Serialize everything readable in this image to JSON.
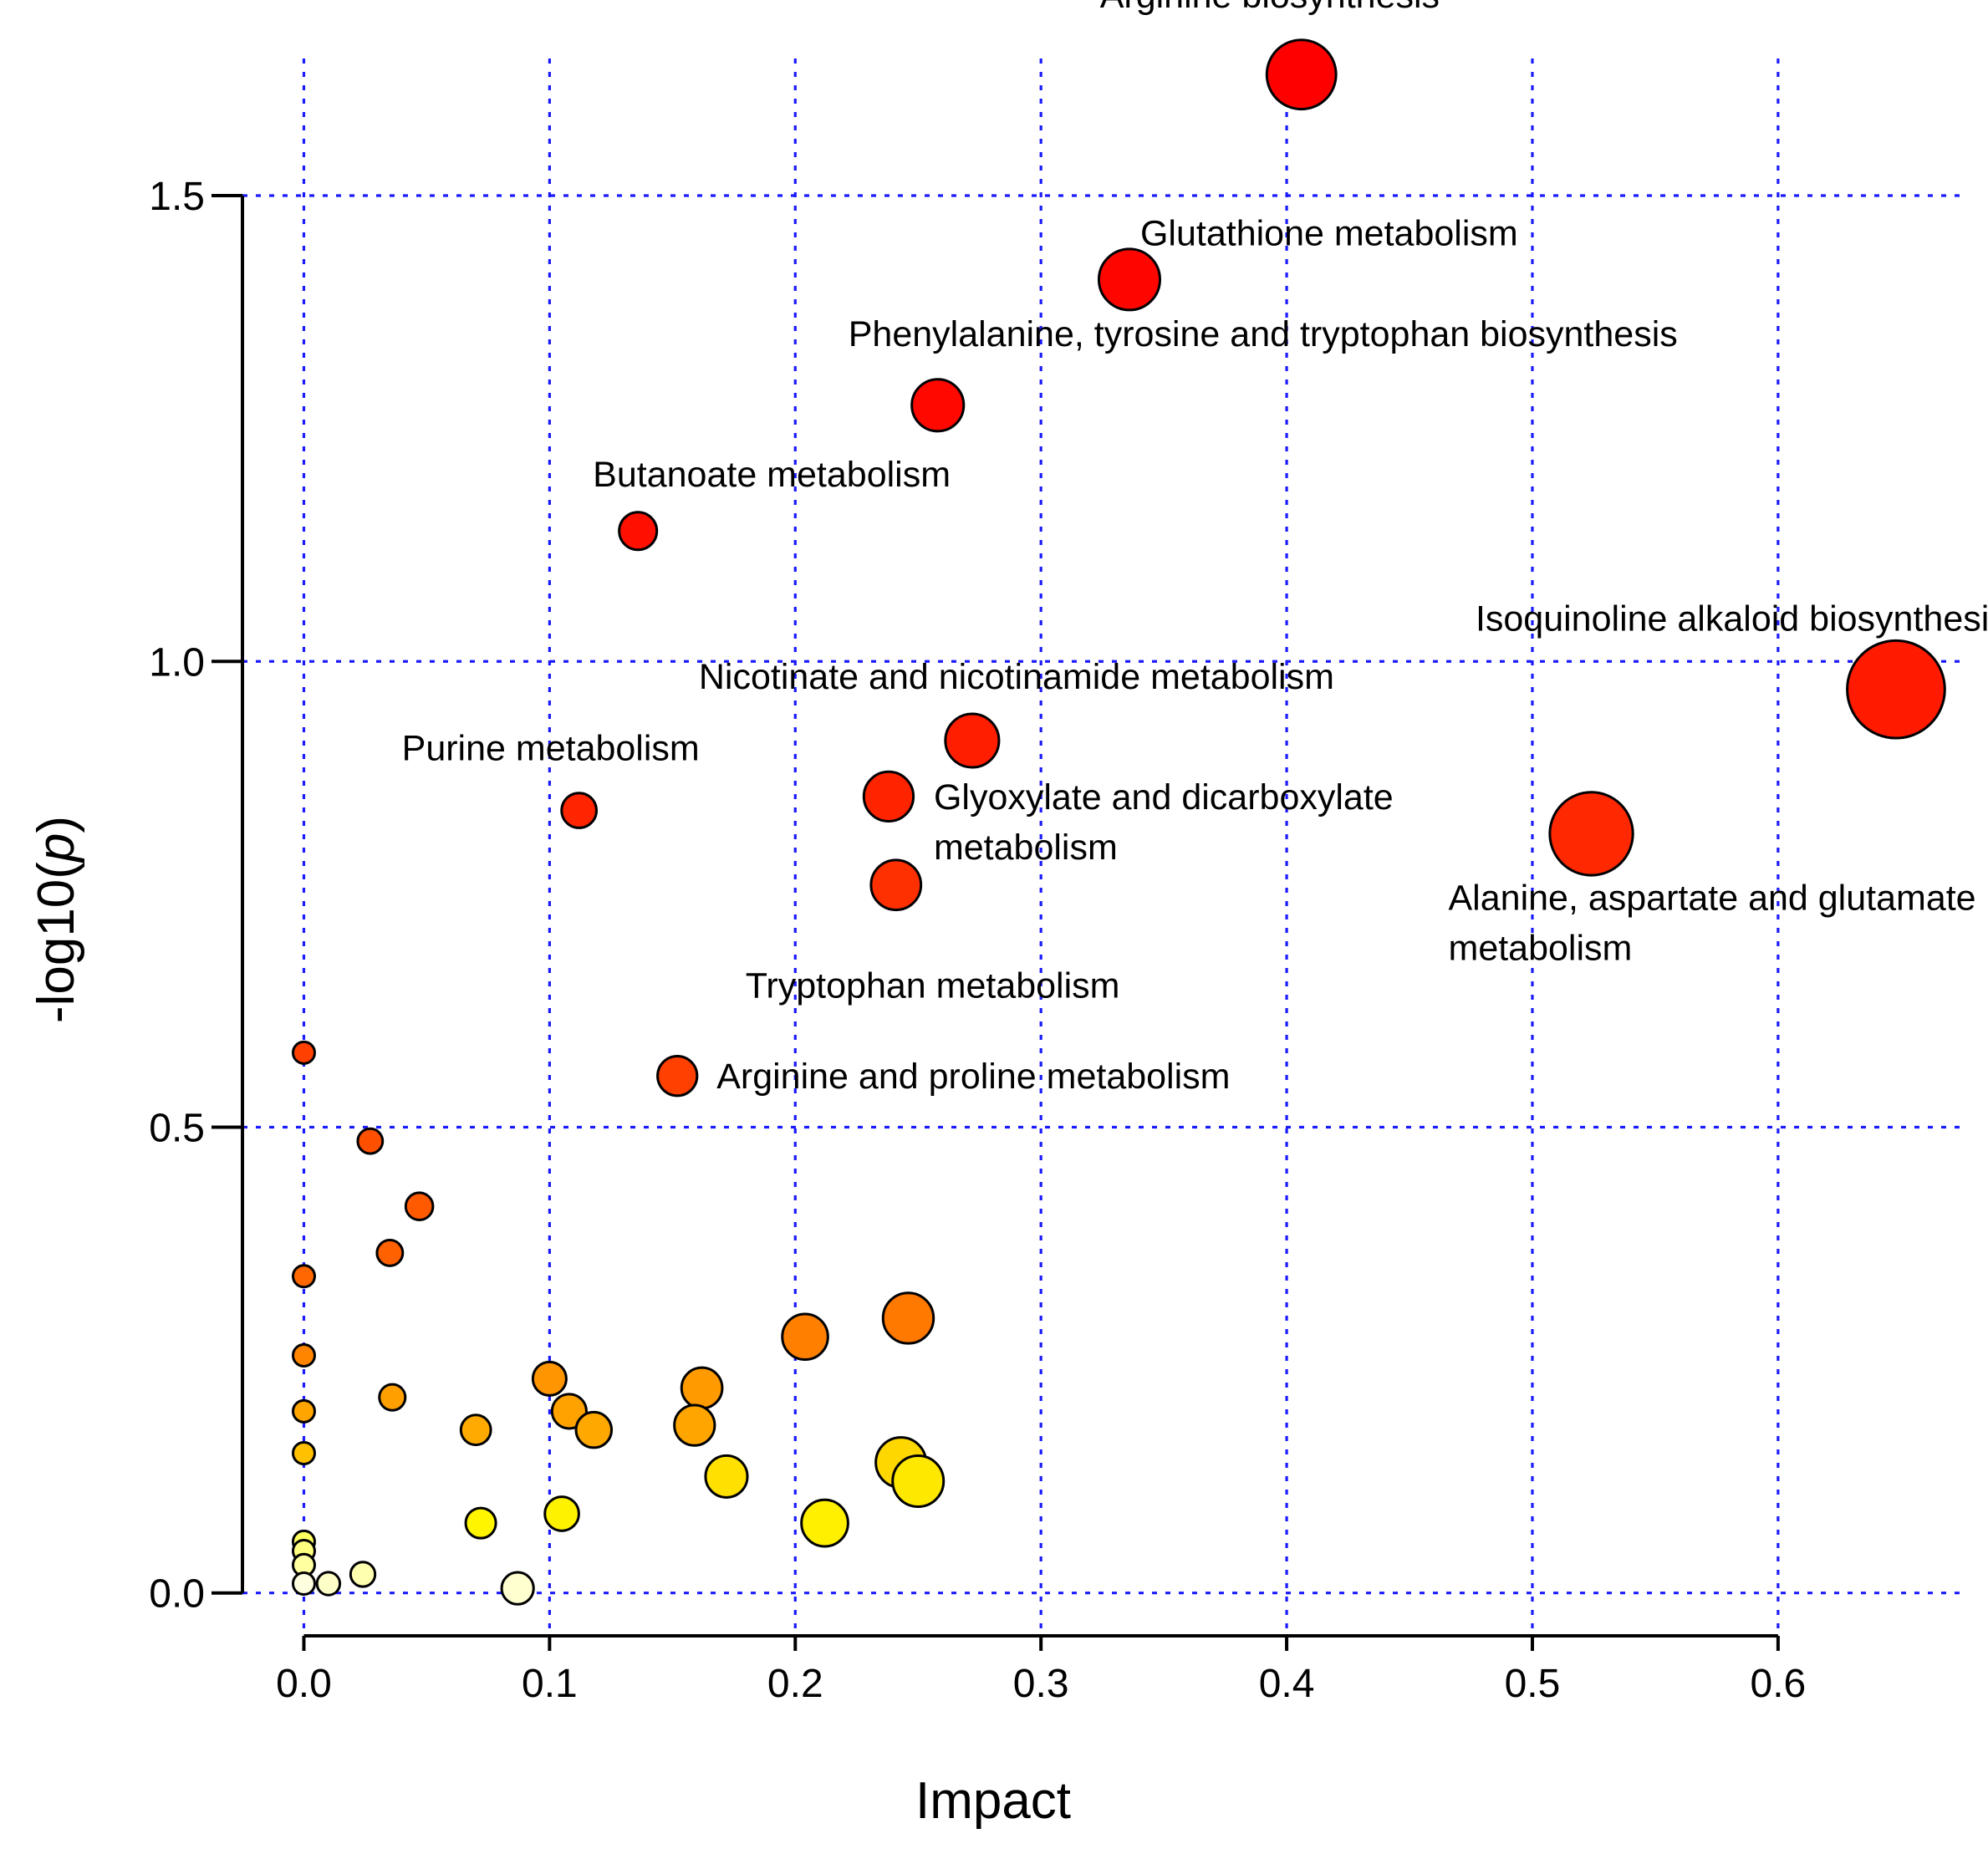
{
  "chart_data": {
    "type": "scatter",
    "title": "",
    "xlabel": "Impact",
    "ylabel_prefix": "-log10(",
    "ylabel_italic": "p",
    "ylabel_suffix": ")",
    "xlim": [
      -0.025,
      0.68
    ],
    "ylim": [
      -0.055,
      1.71
    ],
    "xticks": [
      0.0,
      0.1,
      0.2,
      0.3,
      0.4,
      0.5,
      0.6
    ],
    "xtick_labels": [
      "0.0",
      "0.1",
      "0.2",
      "0.3",
      "0.4",
      "0.5",
      "0.6"
    ],
    "yticks": [
      0.0,
      0.5,
      1.0,
      1.5
    ],
    "ytick_labels": [
      "0.0",
      "0.5",
      "1.0",
      "1.5"
    ],
    "grid": true,
    "grid_style": "dotted",
    "color_scale": [
      "#FFFFE0",
      "#FFFF00",
      "#FFA500",
      "#FF4500",
      "#FF0000"
    ],
    "size_encoding": "impact",
    "points": [
      {
        "x": 0.406,
        "y": 1.63,
        "size": 0.406,
        "color": "#FF0000",
        "label": "Arginine biosynthesis",
        "label_lines": [
          "Arginine biosynthesis"
        ]
      },
      {
        "x": 0.336,
        "y": 1.41,
        "size": 0.336,
        "color": "#FF0500",
        "label": "Glutathione metabolism",
        "label_lines": [
          "Glutathione metabolism"
        ]
      },
      {
        "x": 0.258,
        "y": 1.275,
        "size": 0.258,
        "color": "#FF0800",
        "label": "Phenylalanine, tyrosine and tryptophan biosynthesis",
        "label_lines": [
          "Phenylalanine, tyrosine and tryptophan biosynthesis"
        ]
      },
      {
        "x": 0.136,
        "y": 1.14,
        "size": 0.136,
        "color": "#FF1000",
        "label": "Butanoate metabolism",
        "label_lines": [
          "Butanoate metabolism"
        ]
      },
      {
        "x": 0.648,
        "y": 0.97,
        "size": 0.648,
        "color": "#FF1A00",
        "label": "Isoquinoline alkaloid biosynthesis",
        "label_lines": [
          "Isoquinoline alkaloid biosynthesis"
        ]
      },
      {
        "x": 0.272,
        "y": 0.915,
        "size": 0.272,
        "color": "#FF1E00",
        "label": "Nicotinate and nicotinamide metabolism",
        "label_lines": [
          "Nicotinate and nicotinamide metabolism"
        ]
      },
      {
        "x": 0.238,
        "y": 0.855,
        "size": 0.238,
        "color": "#FF2400",
        "label": "Glyoxylate and dicarboxylate metabolism",
        "label_lines": [
          "Glyoxylate and dicarboxylate",
          "metabolism"
        ]
      },
      {
        "x": 0.112,
        "y": 0.84,
        "size": 0.112,
        "color": "#FF2500",
        "label": "Purine metabolism",
        "label_lines": [
          "Purine metabolism"
        ]
      },
      {
        "x": 0.524,
        "y": 0.815,
        "size": 0.524,
        "color": "#FF2800",
        "label": "Alanine, aspartate and glutamate metabolism",
        "label_lines": [
          "Alanine, aspartate and glutamate",
          "metabolism"
        ]
      },
      {
        "x": 0.241,
        "y": 0.76,
        "size": 0.241,
        "color": "#FF3000",
        "label": "Tryptophan metabolism",
        "label_lines": [
          "Tryptophan metabolism"
        ]
      },
      {
        "x": 0.152,
        "y": 0.555,
        "size": 0.152,
        "color": "#FF4000",
        "label": "Arginine and proline metabolism",
        "label_lines": [
          "Arginine and proline metabolism"
        ]
      },
      {
        "x": 0.0,
        "y": 0.58,
        "size": 0.0,
        "color": "#FF4000",
        "label": ""
      },
      {
        "x": 0.027,
        "y": 0.485,
        "size": 0.027,
        "color": "#FF5000",
        "label": ""
      },
      {
        "x": 0.047,
        "y": 0.415,
        "size": 0.047,
        "color": "#FF5A00",
        "label": ""
      },
      {
        "x": 0.035,
        "y": 0.365,
        "size": 0.035,
        "color": "#FF6000",
        "label": ""
      },
      {
        "x": 0.0,
        "y": 0.34,
        "size": 0.0,
        "color": "#FF6800",
        "label": ""
      },
      {
        "x": 0.246,
        "y": 0.295,
        "size": 0.246,
        "color": "#FF7800",
        "label": ""
      },
      {
        "x": 0.204,
        "y": 0.275,
        "size": 0.204,
        "color": "#FF8000",
        "label": ""
      },
      {
        "x": 0.0,
        "y": 0.255,
        "size": 0.0,
        "color": "#FF8500",
        "label": ""
      },
      {
        "x": 0.1,
        "y": 0.23,
        "size": 0.1,
        "color": "#FF9500",
        "label": ""
      },
      {
        "x": 0.162,
        "y": 0.22,
        "size": 0.162,
        "color": "#FF9A00",
        "label": ""
      },
      {
        "x": 0.036,
        "y": 0.21,
        "size": 0.036,
        "color": "#FFA000",
        "label": ""
      },
      {
        "x": 0.108,
        "y": 0.195,
        "size": 0.108,
        "color": "#FFA200",
        "label": ""
      },
      {
        "x": 0.0,
        "y": 0.195,
        "size": 0.0,
        "color": "#FFA500",
        "label": ""
      },
      {
        "x": 0.159,
        "y": 0.18,
        "size": 0.159,
        "color": "#FFA500",
        "label": ""
      },
      {
        "x": 0.118,
        "y": 0.175,
        "size": 0.118,
        "color": "#FFA800",
        "label": ""
      },
      {
        "x": 0.07,
        "y": 0.175,
        "size": 0.07,
        "color": "#FFAA00",
        "label": ""
      },
      {
        "x": 0.0,
        "y": 0.15,
        "size": 0.0,
        "color": "#FFC000",
        "label": ""
      },
      {
        "x": 0.243,
        "y": 0.14,
        "size": 0.243,
        "color": "#FFD700",
        "label": ""
      },
      {
        "x": 0.172,
        "y": 0.125,
        "size": 0.172,
        "color": "#FFE000",
        "label": ""
      },
      {
        "x": 0.25,
        "y": 0.12,
        "size": 0.25,
        "color": "#FFE800",
        "label": ""
      },
      {
        "x": 0.105,
        "y": 0.085,
        "size": 0.105,
        "color": "#FFF200",
        "label": ""
      },
      {
        "x": 0.072,
        "y": 0.075,
        "size": 0.072,
        "color": "#FFF500",
        "label": ""
      },
      {
        "x": 0.212,
        "y": 0.075,
        "size": 0.212,
        "color": "#FFF000",
        "label": ""
      },
      {
        "x": 0.0,
        "y": 0.055,
        "size": 0.0,
        "color": "#FFFF60",
        "label": ""
      },
      {
        "x": 0.0,
        "y": 0.045,
        "size": 0.0,
        "color": "#FFFF80",
        "label": ""
      },
      {
        "x": 0.0,
        "y": 0.03,
        "size": 0.0,
        "color": "#FFFFA0",
        "label": ""
      },
      {
        "x": 0.024,
        "y": 0.02,
        "size": 0.024,
        "color": "#FFFFB0",
        "label": ""
      },
      {
        "x": 0.01,
        "y": 0.01,
        "size": 0.01,
        "color": "#FFFFC8",
        "label": ""
      },
      {
        "x": 0.0,
        "y": 0.01,
        "size": 0.0,
        "color": "#FFFFE0",
        "label": ""
      },
      {
        "x": 0.087,
        "y": 0.005,
        "size": 0.087,
        "color": "#FFFFD0",
        "label": ""
      }
    ]
  }
}
